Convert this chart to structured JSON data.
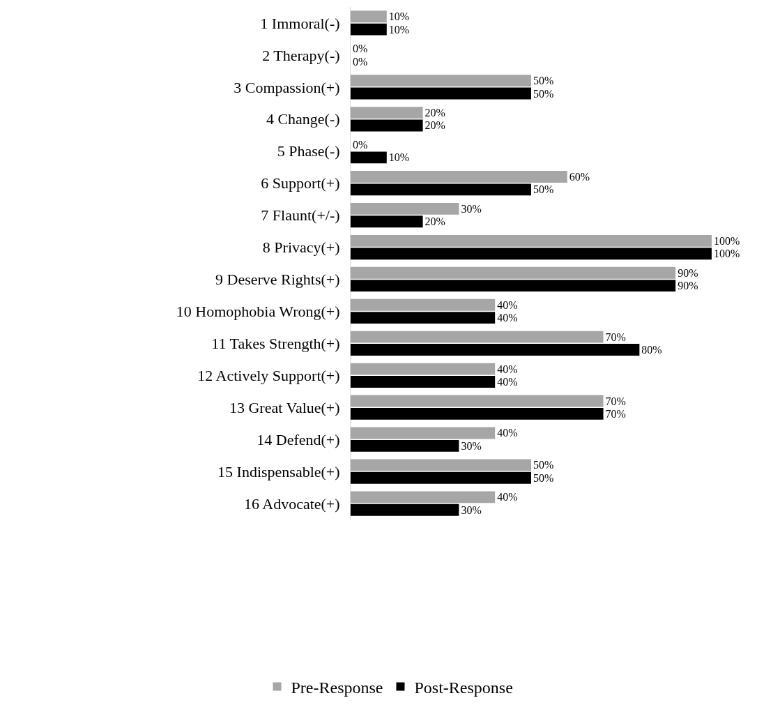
{
  "chart_data": {
    "type": "bar",
    "orientation": "horizontal",
    "legend": "bottom",
    "tick_labels": "y",
    "categories": [
      "1 Immoral(-)",
      "2 Therapy(-)",
      "3 Compassion(+)",
      "4 Change(-)",
      "5 Phase(-)",
      "6 Support(+)",
      "7 Flaunt(+/-)",
      "8 Privacy(+)",
      "9 Deserve Rights(+)",
      "10 Homophobia Wrong(+)",
      "11 Takes Strength(+)",
      "12 Actively Support(+)",
      "13 Great Value(+)",
      "14 Defend(+)",
      "15 Indispensable(+)",
      "16 Advocate(+)"
    ],
    "series": [
      {
        "name": "Pre-Response",
        "color": "#a6a6a6",
        "values": [
          10,
          0,
          50,
          20,
          0,
          60,
          30,
          100,
          90,
          40,
          70,
          40,
          70,
          40,
          50,
          40
        ],
        "value_labels": [
          "10%",
          "0%",
          "50%",
          "20%",
          "0%",
          "60%",
          "30%",
          "100%",
          "90%",
          "40%",
          "70%",
          "40%",
          "70%",
          "40%",
          "50%",
          "40%"
        ]
      },
      {
        "name": "Post-Response",
        "color": "#000000",
        "values": [
          10,
          0,
          50,
          20,
          10,
          50,
          20,
          100,
          90,
          40,
          80,
          40,
          70,
          30,
          50,
          30
        ],
        "value_labels": [
          "10%",
          "0%",
          "50%",
          "20%",
          "10%",
          "50%",
          "20%",
          "100%",
          "90%",
          "40%",
          "80%",
          "40%",
          "70%",
          "30%",
          "50%",
          "30%"
        ]
      }
    ]
  }
}
